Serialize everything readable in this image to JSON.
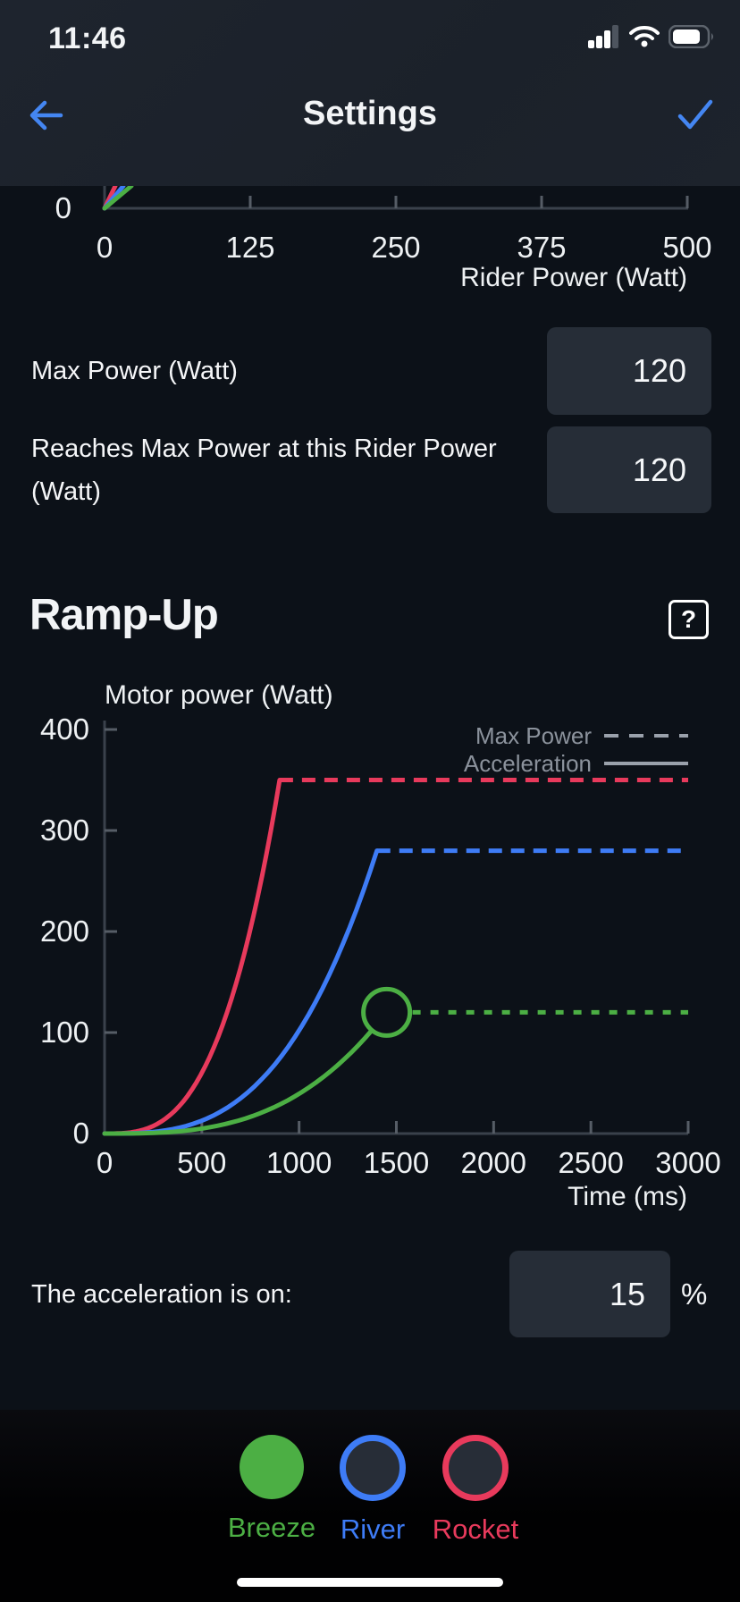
{
  "status_bar": {
    "time": "11:46"
  },
  "header": {
    "title": "Settings"
  },
  "fields": [
    {
      "label": "Max Power (Watt)",
      "value": "120"
    },
    {
      "label": "Reaches Max Power at this Rider Power (Watt)",
      "value": "120"
    }
  ],
  "ramp": {
    "heading": "Ramp-Up",
    "help": "?",
    "acceleration_label": "The acceleration is on:",
    "acceleration_value": "15",
    "acceleration_unit": "%"
  },
  "modes": [
    {
      "name": "Breeze",
      "color": "#4caf44",
      "selected": true
    },
    {
      "name": "River",
      "color": "#3e7cf6",
      "selected": false
    },
    {
      "name": "Rocket",
      "color": "#e83a5c",
      "selected": false
    }
  ],
  "colors": {
    "accent_blue": "#4486f2",
    "green": "#4caf44",
    "blue": "#3e7cf6",
    "red": "#e83a5c",
    "axis": "#3a414b",
    "tick": "#565d66",
    "tick_text": "#eef1f3",
    "legend_text": "#8b929c",
    "legend_line": "#9aa1ab",
    "input_bg": "#262d37",
    "header_bg": "#1c222b",
    "content_bg": "#0c1118"
  },
  "chart_data": [
    {
      "type": "line",
      "name": "rider-power-chart-partial",
      "xlabel": "Rider Power (Watt)",
      "x_ticks": [
        0,
        125,
        250,
        375,
        500
      ],
      "y_ticks_visible": [
        0
      ],
      "xlim": [
        0,
        500
      ],
      "note": "only bottom sliver visible above scroll; three steep curves rise from origin",
      "series": [
        {
          "name": "Rocket",
          "color": "#e83a5c"
        },
        {
          "name": "River",
          "color": "#3e7cf6"
        },
        {
          "name": "Breeze",
          "color": "#4caf44"
        }
      ]
    },
    {
      "type": "line",
      "name": "ramp-up-chart",
      "title": "Motor power (Watt)",
      "xlabel": "Time (ms)",
      "x_ticks": [
        0,
        500,
        1000,
        1500,
        2000,
        2500,
        3000
      ],
      "y_ticks": [
        0,
        100,
        200,
        300,
        400
      ],
      "xlim": [
        0,
        3000
      ],
      "ylim": [
        0,
        400
      ],
      "grid": false,
      "legend_position": "top-right",
      "legend": [
        {
          "label": "Max Power",
          "style": "dashed"
        },
        {
          "label": "Acceleration",
          "style": "solid"
        }
      ],
      "series": [
        {
          "name": "Rocket",
          "color": "#e83a5c",
          "max_power": 350,
          "reaches_max_at_ms": 900,
          "line": "solid-then-dashed"
        },
        {
          "name": "River",
          "color": "#3e7cf6",
          "max_power": 280,
          "reaches_max_at_ms": 1400,
          "line": "solid-then-dashed"
        },
        {
          "name": "Breeze",
          "color": "#4caf44",
          "max_power": 120,
          "reaches_max_at_ms": 1450,
          "line": "solid-then-dashed",
          "marker": "circle-at-max"
        }
      ]
    }
  ]
}
